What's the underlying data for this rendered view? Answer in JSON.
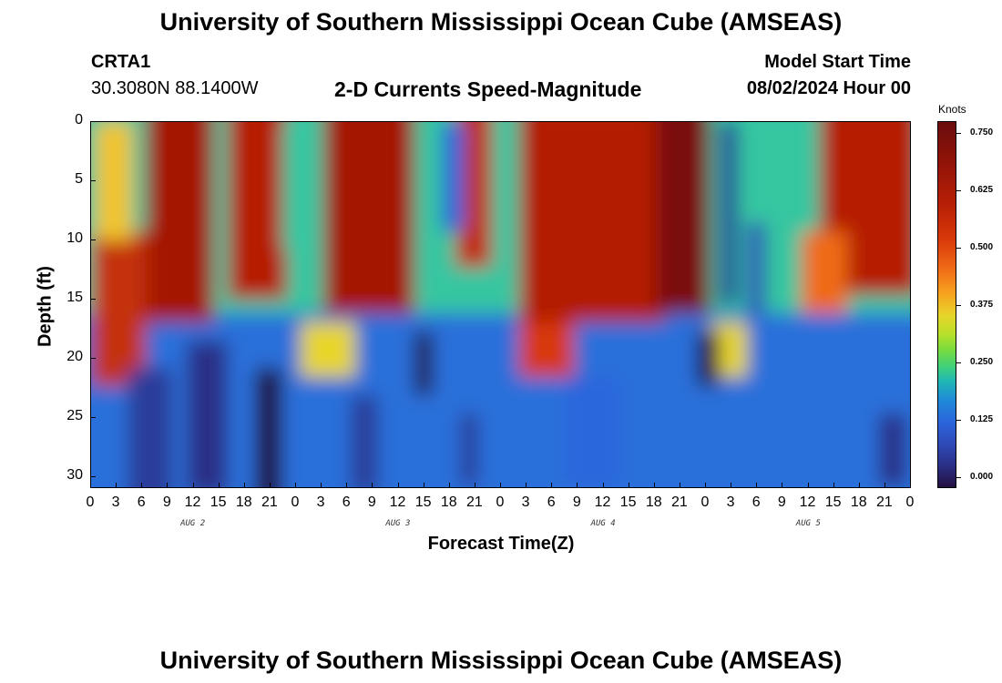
{
  "header": {
    "title": "University of Southern Mississippi Ocean Cube (AMSEAS)",
    "station": "CRTA1",
    "coords": "30.3080N  88.1400W",
    "subtitle": "2-D Currents Speed-Magnitude",
    "model_label": "Model Start Time",
    "model_date": "08/02/2024 Hour 00",
    "footer_title": "University of Southern Mississippi Ocean Cube (AMSEAS)"
  },
  "chart_data": {
    "type": "heatmap",
    "title": "2-D Currents Speed-Magnitude",
    "xlabel": "Forecast Time(Z)",
    "ylabel": "Depth (ft)",
    "x_tick_labels": [
      "0",
      "3",
      "6",
      "9",
      "12",
      "15",
      "18",
      "21",
      "0",
      "3",
      "6",
      "9",
      "12",
      "15",
      "18",
      "21",
      "0",
      "3",
      "6",
      "9",
      "12",
      "15",
      "18",
      "21",
      "0",
      "3",
      "6",
      "9",
      "12",
      "15",
      "18",
      "21",
      "0"
    ],
    "x_range_hours": [
      0,
      96
    ],
    "day_labels": [
      "AUG 2",
      "AUG 3",
      "AUG 4",
      "AUG 5"
    ],
    "y_tick_labels": [
      "0",
      "5",
      "10",
      "15",
      "20",
      "25",
      "30"
    ],
    "y_range": [
      0,
      31
    ],
    "colorbar": {
      "label": "Knots",
      "ticks": [
        "0.750",
        "0.625",
        "0.500",
        "0.375",
        "0.250",
        "0.125",
        "0.000"
      ],
      "range": [
        0,
        0.8
      ]
    }
  }
}
